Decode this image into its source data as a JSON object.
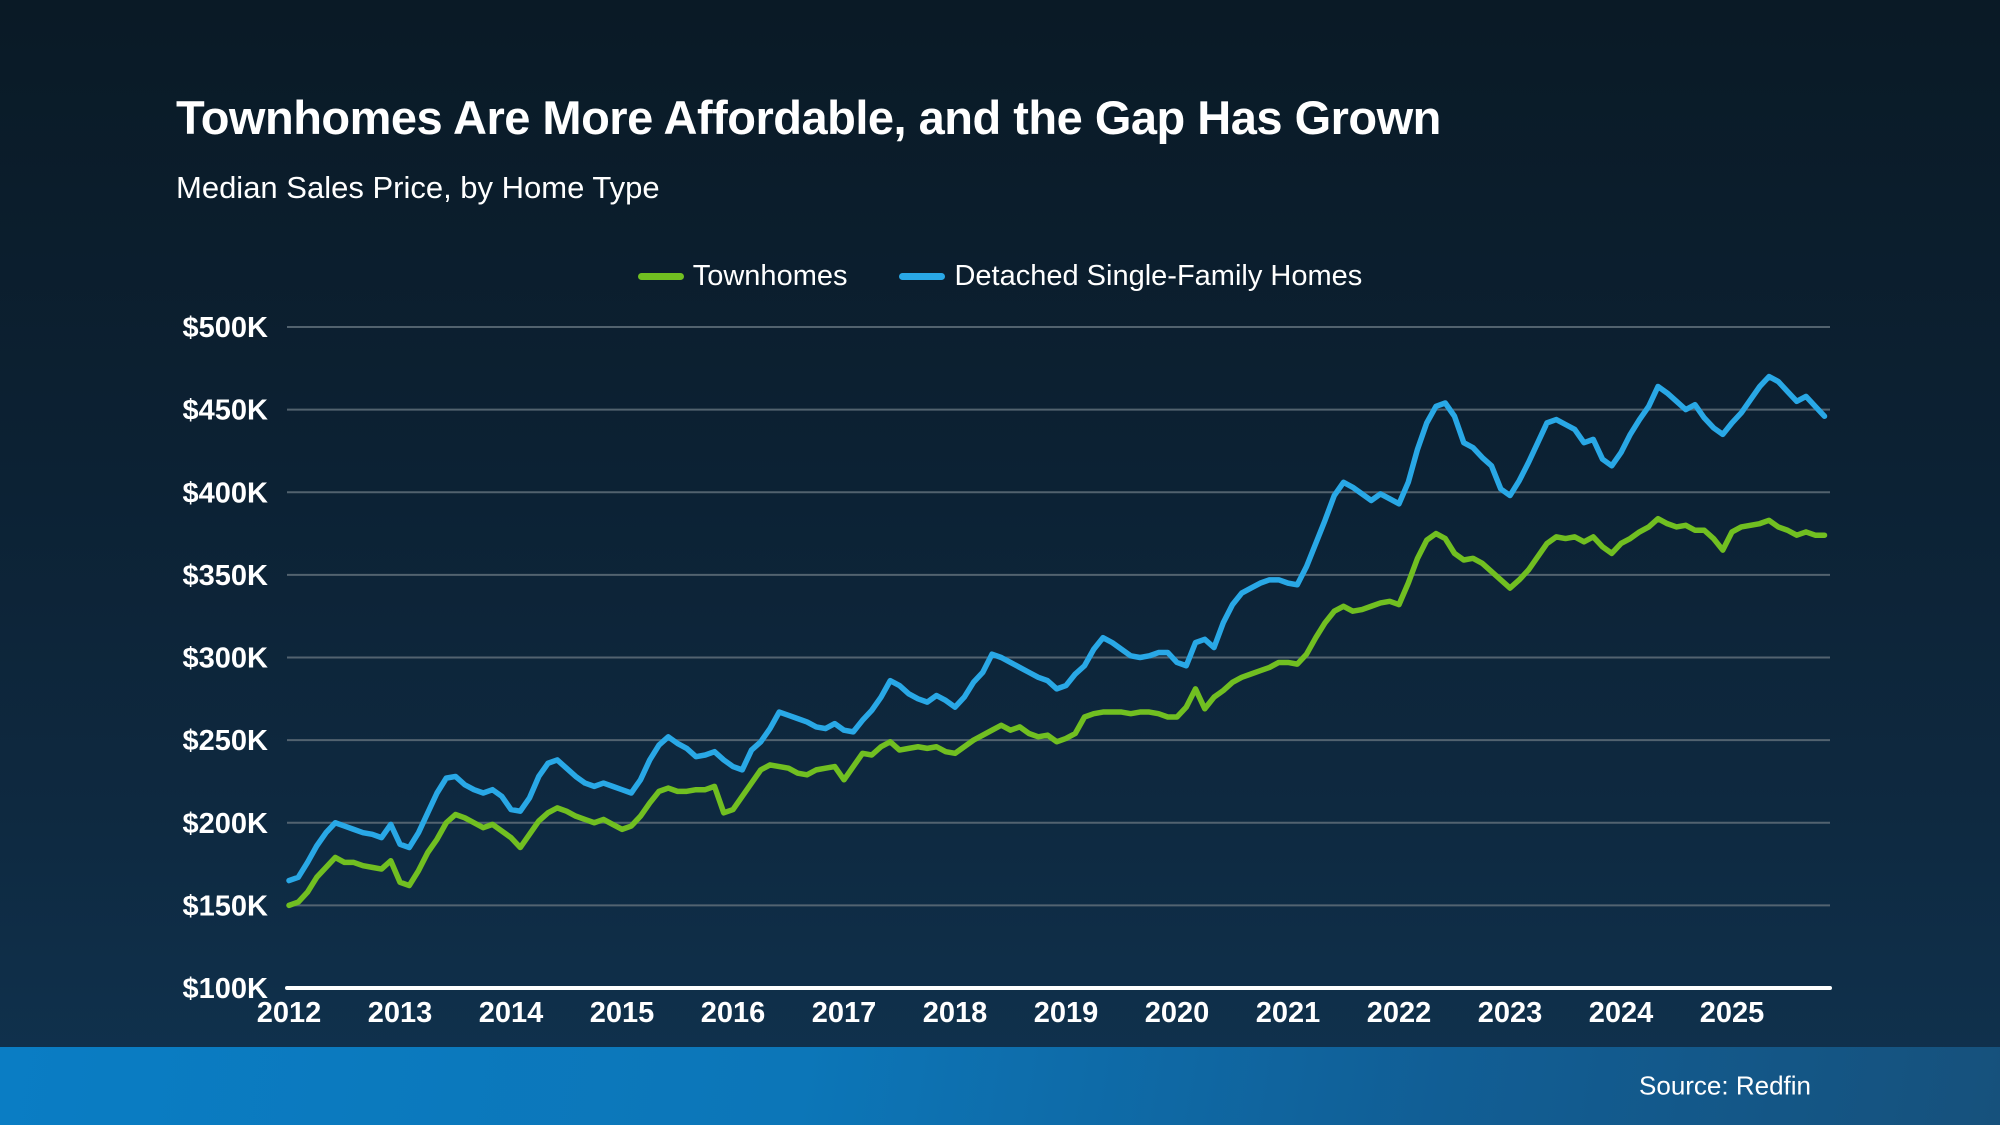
{
  "title": "Townhomes Are More Affordable, and the Gap Has Grown",
  "subtitle": "Median Sales Price, by Home Type",
  "source": "Source: Redfin",
  "colors": {
    "background_top": "#0a1a26",
    "background_bottom": "#103350",
    "townhomes_green": "#71bf21",
    "detached_blue": "#29a8e6",
    "gridline_gray": "#5f6e79",
    "axis_white": "#ffffff",
    "footer_blue_left": "#0a7dc4",
    "footer_blue_right": "#16517c",
    "text_white": "#ffffff"
  },
  "legend": {
    "items": [
      {
        "label": "Townhomes",
        "color": "#71bf21"
      },
      {
        "label": "Detached Single-Family Homes",
        "color": "#29a8e6"
      }
    ]
  },
  "chart_data": {
    "type": "line",
    "title": "Median Sales Price, by Home Type",
    "x_start": "2012-01",
    "x_end": "2025-11",
    "frequency": "monthly",
    "units": "USD thousands",
    "ylim": [
      100,
      500
    ],
    "grid": "horizontal",
    "legend_position": "top-center",
    "y_ticks": [
      {
        "value": 500,
        "label": "$500K"
      },
      {
        "value": 450,
        "label": "$450K"
      },
      {
        "value": 400,
        "label": "$400K"
      },
      {
        "value": 350,
        "label": "$350K"
      },
      {
        "value": 300,
        "label": "$300K"
      },
      {
        "value": 250,
        "label": "$250K"
      },
      {
        "value": 200,
        "label": "$200K"
      },
      {
        "value": 150,
        "label": "$150K"
      },
      {
        "value": 100,
        "label": "$100K"
      }
    ],
    "x_ticks": [
      "2012",
      "2013",
      "2014",
      "2015",
      "2016",
      "2017",
      "2018",
      "2019",
      "2020",
      "2021",
      "2022",
      "2023",
      "2024",
      "2025"
    ],
    "series": [
      {
        "name": "Townhomes",
        "id": "townhomes-line",
        "color": "#71bf21",
        "values": [
          150,
          152,
          158,
          167,
          173,
          179,
          176,
          176,
          174,
          173,
          172,
          177,
          164,
          162,
          171,
          182,
          190,
          200,
          205,
          203,
          200,
          197,
          199,
          195,
          191,
          185,
          193,
          201,
          206,
          209,
          207,
          204,
          202,
          200,
          202,
          199,
          196,
          198,
          204,
          212,
          219,
          221,
          219,
          219,
          220,
          220,
          222,
          206,
          208,
          216,
          224,
          232,
          235,
          234,
          233,
          230,
          229,
          232,
          233,
          234,
          226,
          234,
          242,
          241,
          246,
          249,
          244,
          245,
          246,
          245,
          246,
          243,
          242,
          246,
          250,
          253,
          256,
          259,
          256,
          258,
          254,
          252,
          253,
          249,
          251,
          254,
          264,
          266,
          267,
          267,
          267,
          266,
          267,
          267,
          266,
          264,
          264,
          270,
          281,
          269,
          276,
          280,
          285,
          288,
          290,
          292,
          294,
          297,
          297,
          296,
          302,
          312,
          321,
          328,
          331,
          328,
          329,
          331,
          333,
          334,
          332,
          345,
          360,
          371,
          375,
          372,
          363,
          359,
          360,
          357,
          352,
          347,
          342,
          347,
          353,
          361,
          369,
          373,
          372,
          373,
          370,
          373,
          367,
          363,
          369,
          372,
          376,
          379,
          384,
          381,
          379,
          380,
          377,
          377,
          372,
          365,
          376,
          379,
          380,
          381,
          383,
          379,
          377,
          374,
          376,
          374,
          374
        ]
      },
      {
        "name": "Detached Single-Family Homes",
        "id": "detached-single-family-line",
        "color": "#29a8e6",
        "values": [
          165,
          167,
          176,
          186,
          194,
          200,
          198,
          196,
          194,
          193,
          191,
          199,
          187,
          185,
          194,
          206,
          218,
          227,
          228,
          223,
          220,
          218,
          220,
          216,
          208,
          207,
          215,
          228,
          236,
          238,
          233,
          228,
          224,
          222,
          224,
          222,
          220,
          218,
          226,
          238,
          247,
          252,
          248,
          245,
          240,
          241,
          243,
          238,
          234,
          232,
          244,
          249,
          257,
          267,
          265,
          263,
          261,
          258,
          257,
          260,
          256,
          255,
          262,
          268,
          276,
          286,
          283,
          278,
          275,
          273,
          277,
          274,
          270,
          276,
          285,
          291,
          302,
          300,
          297,
          294,
          291,
          288,
          286,
          281,
          283,
          290,
          295,
          305,
          312,
          309,
          305,
          301,
          300,
          301,
          303,
          303,
          297,
          295,
          309,
          311,
          306,
          321,
          332,
          339,
          342,
          345,
          347,
          347,
          345,
          344,
          355,
          369,
          383,
          398,
          406,
          403,
          399,
          395,
          399,
          396,
          393,
          406,
          426,
          442,
          452,
          454,
          446,
          430,
          427,
          421,
          416,
          402,
          398,
          407,
          418,
          430,
          442,
          444,
          441,
          438,
          430,
          432,
          420,
          416,
          424,
          435,
          444,
          452,
          464,
          460,
          455,
          450,
          453,
          445,
          439,
          435,
          442,
          448,
          456,
          464,
          470,
          467,
          461,
          455,
          458,
          452,
          446
        ]
      }
    ]
  }
}
